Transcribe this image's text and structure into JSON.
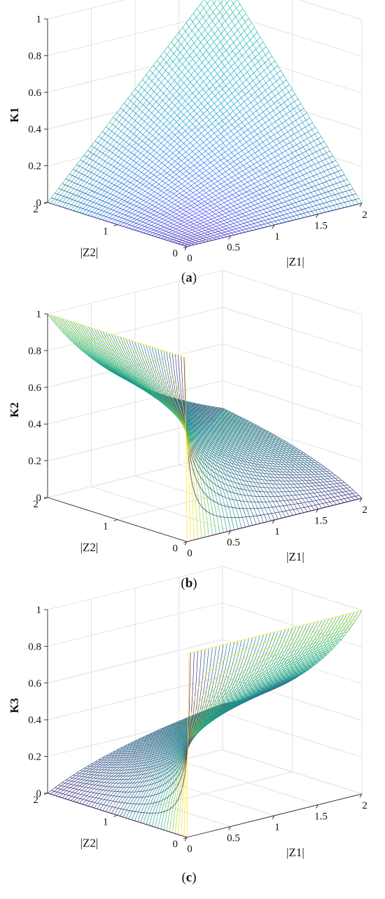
{
  "chart_data": [
    {
      "type": "surface",
      "caption": "a",
      "zlabel": "K1",
      "xlabel": "|Z1|",
      "ylabel": "|Z2|",
      "xlim": [
        0,
        2
      ],
      "ylim": [
        0,
        2
      ],
      "zlim": [
        0,
        1
      ],
      "x_ticks": [
        "0",
        "0.5",
        "1",
        "1.5",
        "2"
      ],
      "y_ticks": [
        "0",
        "1",
        "2"
      ],
      "z_ticks": [
        "0",
        "0.2",
        "0.4",
        "0.6",
        "0.8",
        "1"
      ],
      "surface": {
        "formula": "K1 = |Z1|·|Z2|/4",
        "corner_values": {
          "z1_0_z2_0": 0,
          "z1_2_z2_0": 0,
          "z1_0_z2_2": 0,
          "z1_2_z2_2": 1
        }
      },
      "colormap": "parula",
      "grid": true
    },
    {
      "type": "surface",
      "caption": "b",
      "zlabel": "K2",
      "xlabel": "|Z1|",
      "ylabel": "|Z2|",
      "xlim": [
        0,
        2
      ],
      "ylim": [
        0,
        2
      ],
      "zlim": [
        0,
        1
      ],
      "x_ticks": [
        "0",
        "0.5",
        "1",
        "1.5",
        "2"
      ],
      "y_ticks": [
        "0",
        "1",
        "2"
      ],
      "z_ticks": [
        "0",
        "0.2",
        "0.4",
        "0.6",
        "0.8",
        "1"
      ],
      "surface": {
        "formula": "K2 = |Z2| / (|Z1| + |Z2|) · (1 − |Z1|/4)",
        "corner_values": {
          "z1_0_z2_0": 0,
          "z1_2_z2_0": 0,
          "z1_0_z2_2": 1,
          "z1_2_z2_2": 0.25
        }
      },
      "colormap": "viridis",
      "grid": true
    },
    {
      "type": "surface",
      "caption": "c",
      "zlabel": "K3",
      "xlabel": "|Z1|",
      "ylabel": "|Z2|",
      "xlim": [
        0,
        2
      ],
      "ylim": [
        0,
        2
      ],
      "zlim": [
        0,
        1
      ],
      "x_ticks": [
        "0",
        "0.5",
        "1",
        "1.5",
        "2"
      ],
      "y_ticks": [
        "0",
        "1",
        "2"
      ],
      "z_ticks": [
        "0",
        "0.2",
        "0.4",
        "0.6",
        "0.8",
        "1"
      ],
      "surface": {
        "formula": "K3 = |Z1| / (|Z1| + |Z2|) · (1 − |Z2|/4)",
        "corner_values": {
          "z1_0_z2_0": 0,
          "z1_2_z2_0": 1,
          "z1_0_z2_2": 0,
          "z1_2_z2_2": 0.25
        }
      },
      "colormap": "viridis",
      "grid": true
    }
  ]
}
